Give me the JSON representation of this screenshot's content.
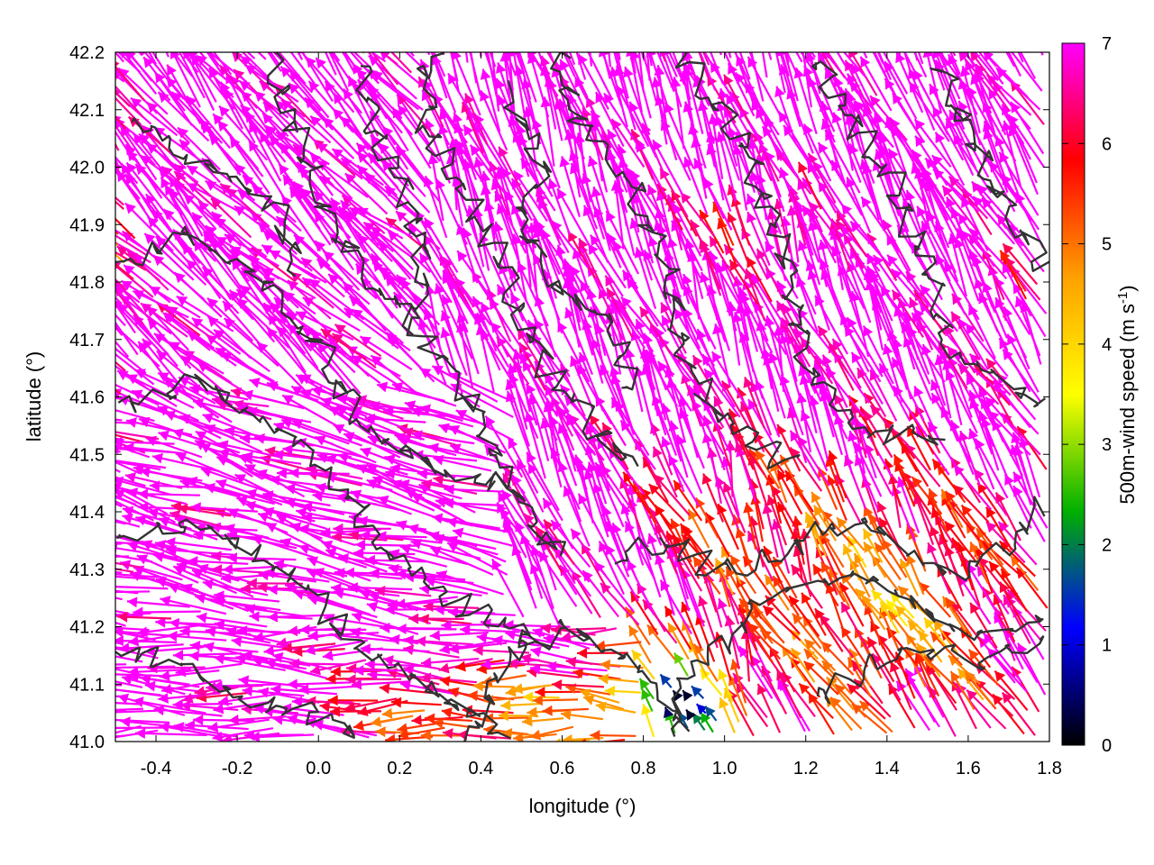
{
  "chart_data": {
    "type": "vector-field",
    "xlabel": "longitude (°)",
    "ylabel": "latitude (°)",
    "xlim": [
      -0.5,
      1.8
    ],
    "ylim": [
      41.0,
      42.2
    ],
    "xticks": [
      "-0.4",
      "-0.2",
      "0.0",
      "0.2",
      "0.4",
      "0.6",
      "0.8",
      "1.0",
      "1.2",
      "1.4",
      "1.6",
      "1.8"
    ],
    "yticks": [
      "41.0",
      "41.1",
      "41.2",
      "41.3",
      "41.4",
      "41.5",
      "41.6",
      "41.7",
      "41.8",
      "41.9",
      "42.0",
      "42.1",
      "42.2"
    ],
    "colorbar": {
      "label_main": "500m-wind speed (m s",
      "label_exp": "-1",
      "label_close": ")",
      "range": [
        0,
        7
      ],
      "ticks": [
        "0",
        "1",
        "2",
        "3",
        "4",
        "5",
        "6",
        "7"
      ],
      "colors": [
        "#000000",
        "#0000ff",
        "#00b000",
        "#ffff00",
        "#ffa000",
        "#ff0000",
        "#ff00ff"
      ]
    },
    "grid": false,
    "legend": "none",
    "field_regions": [
      {
        "region": "west and north of the domain",
        "typical_speed": 7,
        "typical_direction": "toward north-west / west"
      },
      {
        "region": "south-west coastal band (lat 41.0-41.2, lon -0.5 to 0.7)",
        "typical_speed": 5.5,
        "typical_direction": "toward west"
      },
      {
        "region": "south-east (lat 41.0-41.5, lon 1.1 to 1.8)",
        "typical_speed": 5,
        "typical_direction": "toward north-west"
      },
      {
        "region": "calm area near (0.9, 41.05)",
        "typical_speed": 1,
        "typical_direction": "variable"
      }
    ],
    "contour_color": "#333333"
  }
}
